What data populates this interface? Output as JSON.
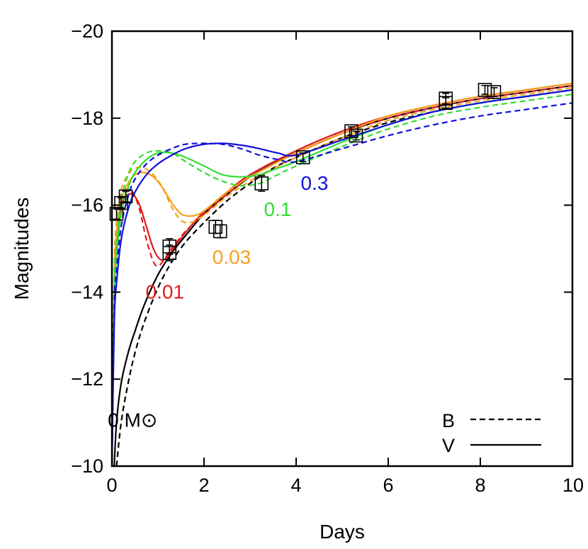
{
  "chart_data": {
    "type": "line",
    "xlabel": "Days",
    "ylabel": "Magnitudes",
    "xlim": [
      0,
      10
    ],
    "ylim": [
      -10,
      -20
    ],
    "y_inverted": true,
    "grid": false,
    "x_ticks": [
      0,
      2,
      4,
      6,
      8,
      10
    ],
    "y_ticks": [
      -10,
      -12,
      -14,
      -16,
      -18,
      -20
    ],
    "x_tick_labels": [
      "0",
      "2",
      "4",
      "6",
      "8",
      "10"
    ],
    "y_tick_labels": [
      "−10",
      "−12",
      "−14",
      "−16",
      "−18",
      "−20"
    ],
    "legend": {
      "position": "bottom-right",
      "entries": [
        {
          "label": "B",
          "style": "dashed"
        },
        {
          "label": "V",
          "style": "solid"
        }
      ]
    },
    "annotations": [
      {
        "text": "0 M⊙",
        "color": "#000000",
        "x": 0.45,
        "y": -10.9
      },
      {
        "text": "0.01",
        "color": "#e41a1c",
        "x": 1.15,
        "y": -13.85
      },
      {
        "text": "0.03",
        "color": "#f5a020",
        "x": 2.6,
        "y": -14.65
      },
      {
        "text": "0.1",
        "color": "#33dd33",
        "x": 3.6,
        "y": -15.75
      },
      {
        "text": "0.3",
        "color": "#1010dd",
        "x": 4.4,
        "y": -16.35
      }
    ],
    "series": [
      {
        "band": "V",
        "color": "#000000",
        "x": [
          0.05,
          0.1,
          0.2,
          0.35,
          0.5,
          0.7,
          1.0,
          1.3,
          1.6,
          2.0,
          2.5,
          3.0,
          3.5,
          4.0,
          5.0,
          6.0,
          7.0,
          8.0,
          9.0,
          10.0
        ],
        "y": [
          -10.0,
          -11.0,
          -11.9,
          -12.6,
          -13.1,
          -13.7,
          -14.4,
          -14.9,
          -15.3,
          -15.8,
          -16.25,
          -16.65,
          -16.95,
          -17.2,
          -17.65,
          -18.0,
          -18.25,
          -18.45,
          -18.6,
          -18.75
        ]
      },
      {
        "band": "B",
        "color": "#000000",
        "x": [
          0.1,
          0.2,
          0.35,
          0.5,
          0.7,
          1.0,
          1.3,
          1.6,
          2.0,
          2.5,
          3.0,
          3.5,
          4.0,
          5.0,
          6.0,
          7.0,
          8.0,
          9.0,
          10.0
        ],
        "y": [
          -10.0,
          -11.0,
          -11.9,
          -12.6,
          -13.3,
          -14.1,
          -14.7,
          -15.15,
          -15.6,
          -16.1,
          -16.5,
          -16.85,
          -17.1,
          -17.55,
          -17.9,
          -18.15,
          -18.35,
          -18.5,
          -18.65
        ]
      },
      {
        "band": "V",
        "color": "#e41a1c",
        "x": [
          0.0,
          0.05,
          0.1,
          0.2,
          0.3,
          0.45,
          0.6,
          0.75,
          0.9,
          1.05,
          1.2,
          1.4,
          1.7,
          2.0,
          2.5,
          3.0,
          4.0,
          5.0,
          6.0,
          7.0,
          8.0,
          9.0,
          10.0
        ],
        "y": [
          -10.0,
          -14.0,
          -15.2,
          -15.95,
          -16.2,
          -16.25,
          -16.0,
          -15.5,
          -15.0,
          -14.75,
          -14.8,
          -15.1,
          -15.5,
          -15.85,
          -16.3,
          -16.7,
          -17.25,
          -17.7,
          -18.05,
          -18.3,
          -18.5,
          -18.65,
          -18.8
        ]
      },
      {
        "band": "B",
        "color": "#e41a1c",
        "x": [
          0.0,
          0.05,
          0.1,
          0.2,
          0.3,
          0.45,
          0.6,
          0.75,
          0.9,
          1.0,
          1.1,
          1.3,
          1.6,
          2.0,
          2.5,
          3.0,
          4.0,
          5.0,
          6.0,
          7.0,
          8.0,
          9.0,
          10.0
        ],
        "y": [
          -10.0,
          -14.3,
          -15.5,
          -16.2,
          -16.35,
          -16.3,
          -15.9,
          -15.2,
          -14.7,
          -14.6,
          -14.7,
          -15.0,
          -15.4,
          -15.8,
          -16.25,
          -16.65,
          -17.2,
          -17.65,
          -18.0,
          -18.25,
          -18.45,
          -18.6,
          -18.75
        ]
      },
      {
        "band": "V",
        "color": "#f5a020",
        "x": [
          0.0,
          0.05,
          0.1,
          0.2,
          0.35,
          0.5,
          0.7,
          0.9,
          1.1,
          1.3,
          1.5,
          1.7,
          1.9,
          2.1,
          2.5,
          3.0,
          4.0,
          5.0,
          6.0,
          7.0,
          8.0,
          9.0,
          10.0
        ],
        "y": [
          -10.0,
          -14.2,
          -15.3,
          -16.1,
          -16.5,
          -16.7,
          -16.75,
          -16.65,
          -16.4,
          -16.05,
          -15.8,
          -15.75,
          -15.8,
          -15.95,
          -16.3,
          -16.65,
          -17.2,
          -17.65,
          -18.05,
          -18.3,
          -18.5,
          -18.65,
          -18.8
        ]
      },
      {
        "band": "B",
        "color": "#f5a020",
        "x": [
          0.0,
          0.05,
          0.1,
          0.2,
          0.35,
          0.5,
          0.7,
          0.9,
          1.1,
          1.3,
          1.5,
          1.7,
          1.9,
          2.1,
          2.5,
          3.0,
          4.0,
          5.0,
          6.0,
          7.0,
          8.0,
          9.0,
          10.0
        ],
        "y": [
          -10.0,
          -14.5,
          -15.6,
          -16.35,
          -16.7,
          -16.85,
          -16.85,
          -16.7,
          -16.4,
          -15.95,
          -15.65,
          -15.6,
          -15.7,
          -15.85,
          -16.2,
          -16.55,
          -17.1,
          -17.55,
          -17.95,
          -18.2,
          -18.4,
          -18.55,
          -18.7
        ]
      },
      {
        "band": "V",
        "color": "#33dd33",
        "x": [
          0.0,
          0.05,
          0.1,
          0.2,
          0.35,
          0.5,
          0.75,
          1.0,
          1.3,
          1.6,
          2.0,
          2.4,
          2.8,
          3.2,
          3.6,
          4.0,
          5.0,
          6.0,
          7.0,
          8.0,
          9.0,
          10.0
        ],
        "y": [
          -10.0,
          -13.8,
          -14.8,
          -15.8,
          -16.4,
          -16.75,
          -17.05,
          -17.2,
          -17.2,
          -17.1,
          -16.9,
          -16.7,
          -16.65,
          -16.7,
          -16.85,
          -17.0,
          -17.45,
          -17.85,
          -18.15,
          -18.35,
          -18.5,
          -18.65
        ]
      },
      {
        "band": "B",
        "color": "#33dd33",
        "x": [
          0.0,
          0.05,
          0.1,
          0.2,
          0.35,
          0.5,
          0.75,
          1.0,
          1.3,
          1.6,
          2.0,
          2.4,
          2.8,
          3.2,
          3.6,
          4.0,
          5.0,
          6.0,
          7.0,
          8.0,
          9.0,
          10.0
        ],
        "y": [
          -10.0,
          -14.1,
          -15.1,
          -16.1,
          -16.7,
          -17.0,
          -17.2,
          -17.25,
          -17.2,
          -17.0,
          -16.75,
          -16.55,
          -16.45,
          -16.5,
          -16.7,
          -16.9,
          -17.35,
          -17.75,
          -18.05,
          -18.25,
          -18.4,
          -18.55
        ]
      },
      {
        "band": "V",
        "color": "#1010dd",
        "x": [
          0.0,
          0.05,
          0.1,
          0.2,
          0.35,
          0.5,
          0.75,
          1.0,
          1.3,
          1.6,
          2.0,
          2.4,
          2.8,
          3.2,
          3.6,
          4.0,
          5.0,
          6.0,
          7.0,
          8.0,
          9.0,
          10.0
        ],
        "y": [
          -10.0,
          -13.3,
          -14.2,
          -15.2,
          -15.9,
          -16.3,
          -16.7,
          -16.95,
          -17.15,
          -17.3,
          -17.4,
          -17.42,
          -17.38,
          -17.3,
          -17.2,
          -17.15,
          -17.5,
          -17.85,
          -18.15,
          -18.35,
          -18.5,
          -18.65
        ]
      },
      {
        "band": "B",
        "color": "#1010dd",
        "x": [
          0.0,
          0.05,
          0.1,
          0.2,
          0.35,
          0.5,
          0.75,
          1.0,
          1.3,
          1.6,
          2.0,
          2.4,
          2.8,
          3.2,
          3.6,
          4.0,
          5.0,
          6.0,
          7.0,
          8.0,
          9.0,
          10.0
        ],
        "y": [
          -10.0,
          -13.6,
          -14.5,
          -15.5,
          -16.2,
          -16.6,
          -16.95,
          -17.15,
          -17.3,
          -17.4,
          -17.42,
          -17.4,
          -17.3,
          -17.15,
          -17.05,
          -17.0,
          -17.3,
          -17.6,
          -17.85,
          -18.05,
          -18.2,
          -18.35
        ]
      }
    ],
    "observations": [
      {
        "x": 0.1,
        "y": -15.8,
        "err": 0.12
      },
      {
        "x": 0.2,
        "y": -16.05,
        "err": 0.12
      },
      {
        "x": 0.3,
        "y": -16.2,
        "err": 0.12
      },
      {
        "x": 1.25,
        "y": -15.05,
        "err": 0.18
      },
      {
        "x": 1.25,
        "y": -14.9,
        "err": 0.18
      },
      {
        "x": 2.25,
        "y": -15.5,
        "err": 0.15
      },
      {
        "x": 2.35,
        "y": -15.4,
        "err": 0.15
      },
      {
        "x": 3.25,
        "y": -16.5,
        "err": 0.18
      },
      {
        "x": 4.15,
        "y": -17.1,
        "err": 0.1
      },
      {
        "x": 5.2,
        "y": -17.7,
        "err": 0.1
      },
      {
        "x": 5.3,
        "y": -17.6,
        "err": 0.1
      },
      {
        "x": 7.25,
        "y": -18.45,
        "err": 0.12
      },
      {
        "x": 7.25,
        "y": -18.35,
        "err": 0.12
      },
      {
        "x": 8.1,
        "y": -18.65,
        "err": 0.1
      },
      {
        "x": 8.3,
        "y": -18.6,
        "err": 0.1
      }
    ]
  }
}
